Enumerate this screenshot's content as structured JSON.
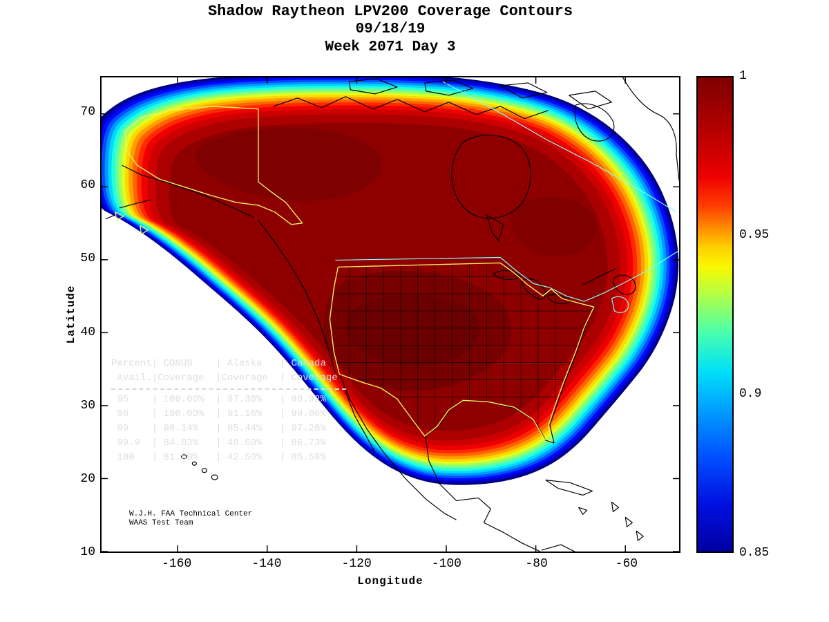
{
  "title": {
    "line1": "Shadow Raytheon LPV200 Coverage Contours",
    "line2": "09/18/19",
    "line3": "Week 2071 Day 3"
  },
  "axes": {
    "xlabel": "Longitude",
    "ylabel": "Latitude",
    "x_ticks": [
      "-160",
      "-140",
      "-120",
      "-100",
      "-80",
      "-60"
    ],
    "y_ticks": [
      "70",
      "60",
      "50",
      "40",
      "30",
      "20",
      "10"
    ]
  },
  "colorbar": {
    "labels": [
      "1",
      "0.95",
      "0.9",
      "0.85"
    ],
    "min": 0.85,
    "max": 1.0
  },
  "availability_table": {
    "header_row_1": [
      "Percent",
      "CONUS",
      "Alaska",
      "Canada"
    ],
    "header_row_2": [
      "Avail.",
      "Coverage",
      "Coverage",
      "Coverage"
    ],
    "rows": [
      [
        "95",
        "100.00%",
        "97.30%",
        "99.92%"
      ],
      [
        "98",
        "100.00%",
        "91.16%",
        "99.06%"
      ],
      [
        "99",
        "98.14%",
        "85.44%",
        "97.20%"
      ],
      [
        "99.9",
        "84.03%",
        "48.60%",
        "86.73%"
      ],
      [
        "100",
        "81.69%",
        "42.50%",
        "85.58%"
      ]
    ]
  },
  "credit": {
    "line1": "W.J.H. FAA Technical Center",
    "line2": "WAAS Test Team"
  },
  "chart_data": {
    "type": "heatmap",
    "subtype": "filled-contour-coverage-map",
    "title": "Shadow Raytheon LPV200 Coverage Contours",
    "date": "09/18/19",
    "week": "2071",
    "day": "3",
    "xlabel": "Longitude",
    "ylabel": "Latitude",
    "xlim": [
      -177,
      -48
    ],
    "ylim": [
      10,
      75
    ],
    "grid": false,
    "colormap": "jet",
    "colorbar_range": [
      0.85,
      1.0
    ],
    "colorbar_ticks": [
      1,
      0.95,
      0.9,
      0.85
    ],
    "regions_outlined": [
      "CONUS",
      "Alaska",
      "Canada"
    ],
    "coverage_table": {
      "columns": [
        "Percent Avail.",
        "CONUS Coverage",
        "Alaska Coverage",
        "Canada Coverage"
      ],
      "rows": [
        [
          95,
          100.0,
          97.3,
          99.92
        ],
        [
          98,
          100.0,
          91.16,
          99.06
        ],
        [
          99,
          98.14,
          85.44,
          97.2
        ],
        [
          99.9,
          84.03,
          48.6,
          86.73
        ],
        [
          100,
          81.69,
          42.5,
          85.58
        ]
      ]
    },
    "accent_colors": {
      "interior_max_coverage": "#8e0000",
      "conus_border": "#f0f060",
      "alaska_border": "#f0f060",
      "canada_border": "#80ffff",
      "coastlines": "#000000"
    }
  }
}
